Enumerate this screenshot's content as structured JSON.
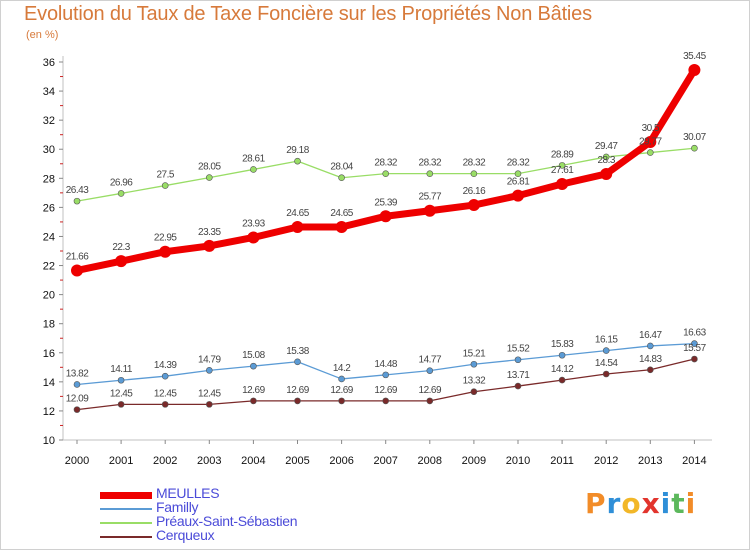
{
  "title": "Evolution du Taux de Taxe Foncière sur les Propriétés Non Bâties",
  "subtitle": "(en %)",
  "logo": {
    "letters": [
      "P",
      "r",
      "o",
      "x",
      "i",
      "t",
      "i"
    ],
    "colors": [
      "#f28c28",
      "#2f8fd8",
      "#f2b728",
      "#e2342d",
      "#2f8fd8",
      "#5cb85c",
      "#f28c28"
    ]
  },
  "chart_data": {
    "type": "line",
    "title": "Evolution du Taux de Taxe Foncière sur les Propriétés Non Bâties",
    "ylabel": "(en %)",
    "xlabel": "",
    "x": [
      "2000",
      "2001",
      "2002",
      "2003",
      "2004",
      "2005",
      "2006",
      "2007",
      "2008",
      "2009",
      "2010",
      "2011",
      "2012",
      "2013",
      "2014"
    ],
    "ylim": [
      10,
      36
    ],
    "yticks": [
      10,
      12,
      14,
      16,
      18,
      20,
      22,
      24,
      26,
      28,
      30,
      32,
      34,
      36
    ],
    "grid": false,
    "legend": "bottom-left",
    "series": [
      {
        "name": "MEULLES",
        "color": "#ee0000",
        "values": [
          21.66,
          22.3,
          22.95,
          23.35,
          23.93,
          24.65,
          24.65,
          25.39,
          25.77,
          26.16,
          26.81,
          27.61,
          28.3,
          30.5,
          35.45
        ],
        "labels": [
          "21.66",
          "22.3",
          "22.95",
          "23.35",
          "23.93",
          "24.65",
          "24.65",
          "25.39",
          "25.77",
          "26.16",
          "26.81",
          "27.61",
          "28.3",
          "30.5",
          "35.45"
        ]
      },
      {
        "name": "Familly",
        "color": "#5b9bd5",
        "values": [
          13.82,
          14.11,
          14.39,
          14.79,
          15.08,
          15.38,
          14.2,
          14.48,
          14.77,
          15.21,
          15.52,
          15.83,
          16.15,
          16.47,
          16.63
        ],
        "labels": [
          "13.82",
          "14.11",
          "14.39",
          "14.79",
          "15.08",
          "15.38",
          "14.2",
          "14.48",
          "14.77",
          "15.21",
          "15.52",
          "15.83",
          "16.15",
          "16.47",
          "16.63"
        ]
      },
      {
        "name": "Préaux-Saint-Sébastien",
        "color": "#99dd66",
        "values": [
          26.43,
          26.96,
          27.5,
          28.05,
          28.61,
          29.18,
          28.04,
          28.32,
          28.32,
          28.32,
          28.32,
          28.89,
          29.47,
          29.77,
          30.07
        ],
        "labels": [
          "26.43",
          "26.96",
          "27.5",
          "28.05",
          "28.61",
          "29.18",
          "28.04",
          "28.32",
          "28.32",
          "28.32",
          "28.32",
          "28.89",
          "29.47",
          "29.77",
          "30.07"
        ]
      },
      {
        "name": "Cerqueux",
        "color": "#7a2a2a",
        "values": [
          12.09,
          12.45,
          12.45,
          12.45,
          12.69,
          12.69,
          12.69,
          12.69,
          12.69,
          13.32,
          13.71,
          14.12,
          14.54,
          14.83,
          15.57
        ],
        "labels": [
          "12.09",
          "12.45",
          "12.45",
          "12.45",
          "12.69",
          "12.69",
          "12.69",
          "12.69",
          "12.69",
          "13.32",
          "13.71",
          "14.12",
          "14.54",
          "14.83",
          "15.57"
        ]
      }
    ]
  }
}
